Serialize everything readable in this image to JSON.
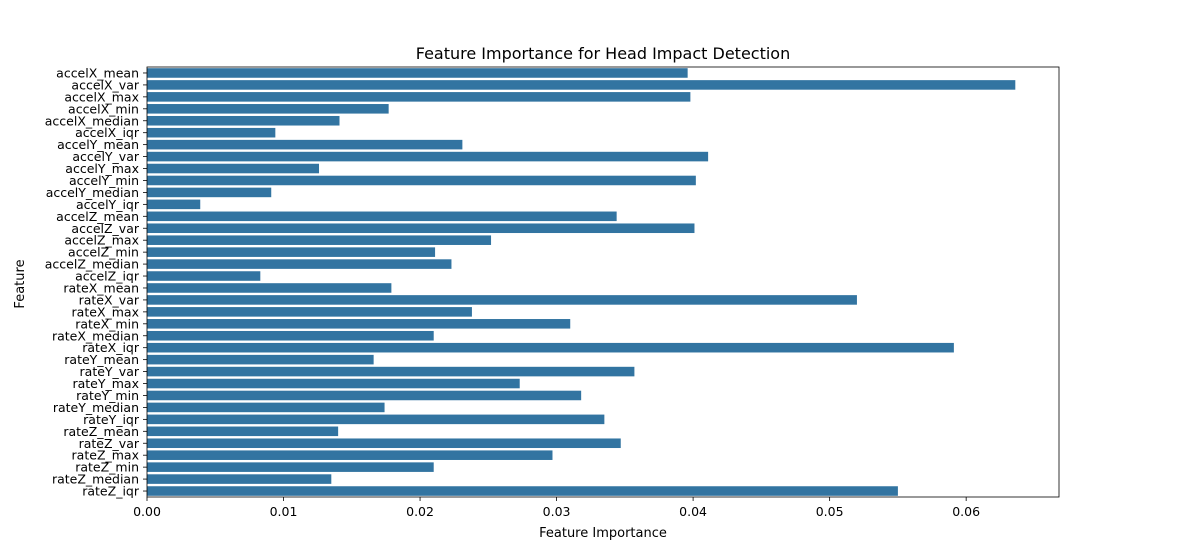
{
  "chart_data": {
    "type": "bar",
    "orientation": "horizontal",
    "title": "Feature Importance for Head Impact Detection",
    "xlabel": "Feature Importance",
    "ylabel": "Feature",
    "xlim": [
      0,
      0.0668
    ],
    "xticks": [
      "0.00",
      "0.01",
      "0.02",
      "0.03",
      "0.04",
      "0.05",
      "0.06"
    ],
    "grid": false,
    "bar_color": "#3274a1",
    "categories": [
      "accelX_mean",
      "accelX_var",
      "accelX_max",
      "accelX_min",
      "accelX_median",
      "accelX_iqr",
      "accelY_mean",
      "accelY_var",
      "accelY_max",
      "accelY_min",
      "accelY_median",
      "accelY_iqr",
      "accelZ_mean",
      "accelZ_var",
      "accelZ_max",
      "accelZ_min",
      "accelZ_median",
      "accelZ_iqr",
      "rateX_mean",
      "rateX_var",
      "rateX_max",
      "rateX_min",
      "rateX_median",
      "rateX_iqr",
      "rateY_mean",
      "rateY_var",
      "rateY_max",
      "rateY_min",
      "rateY_median",
      "rateY_iqr",
      "rateZ_mean",
      "rateZ_var",
      "rateZ_max",
      "rateZ_min",
      "rateZ_median",
      "rateZ_iqr"
    ],
    "values": [
      0.0396,
      0.0636,
      0.0398,
      0.0177,
      0.0141,
      0.0094,
      0.0231,
      0.0411,
      0.0126,
      0.0402,
      0.0091,
      0.0039,
      0.0344,
      0.0401,
      0.0252,
      0.0211,
      0.0223,
      0.0083,
      0.0179,
      0.052,
      0.0238,
      0.031,
      0.021,
      0.0591,
      0.0166,
      0.0357,
      0.0273,
      0.0318,
      0.0174,
      0.0335,
      0.014,
      0.0347,
      0.0297,
      0.021,
      0.0135,
      0.055
    ]
  }
}
